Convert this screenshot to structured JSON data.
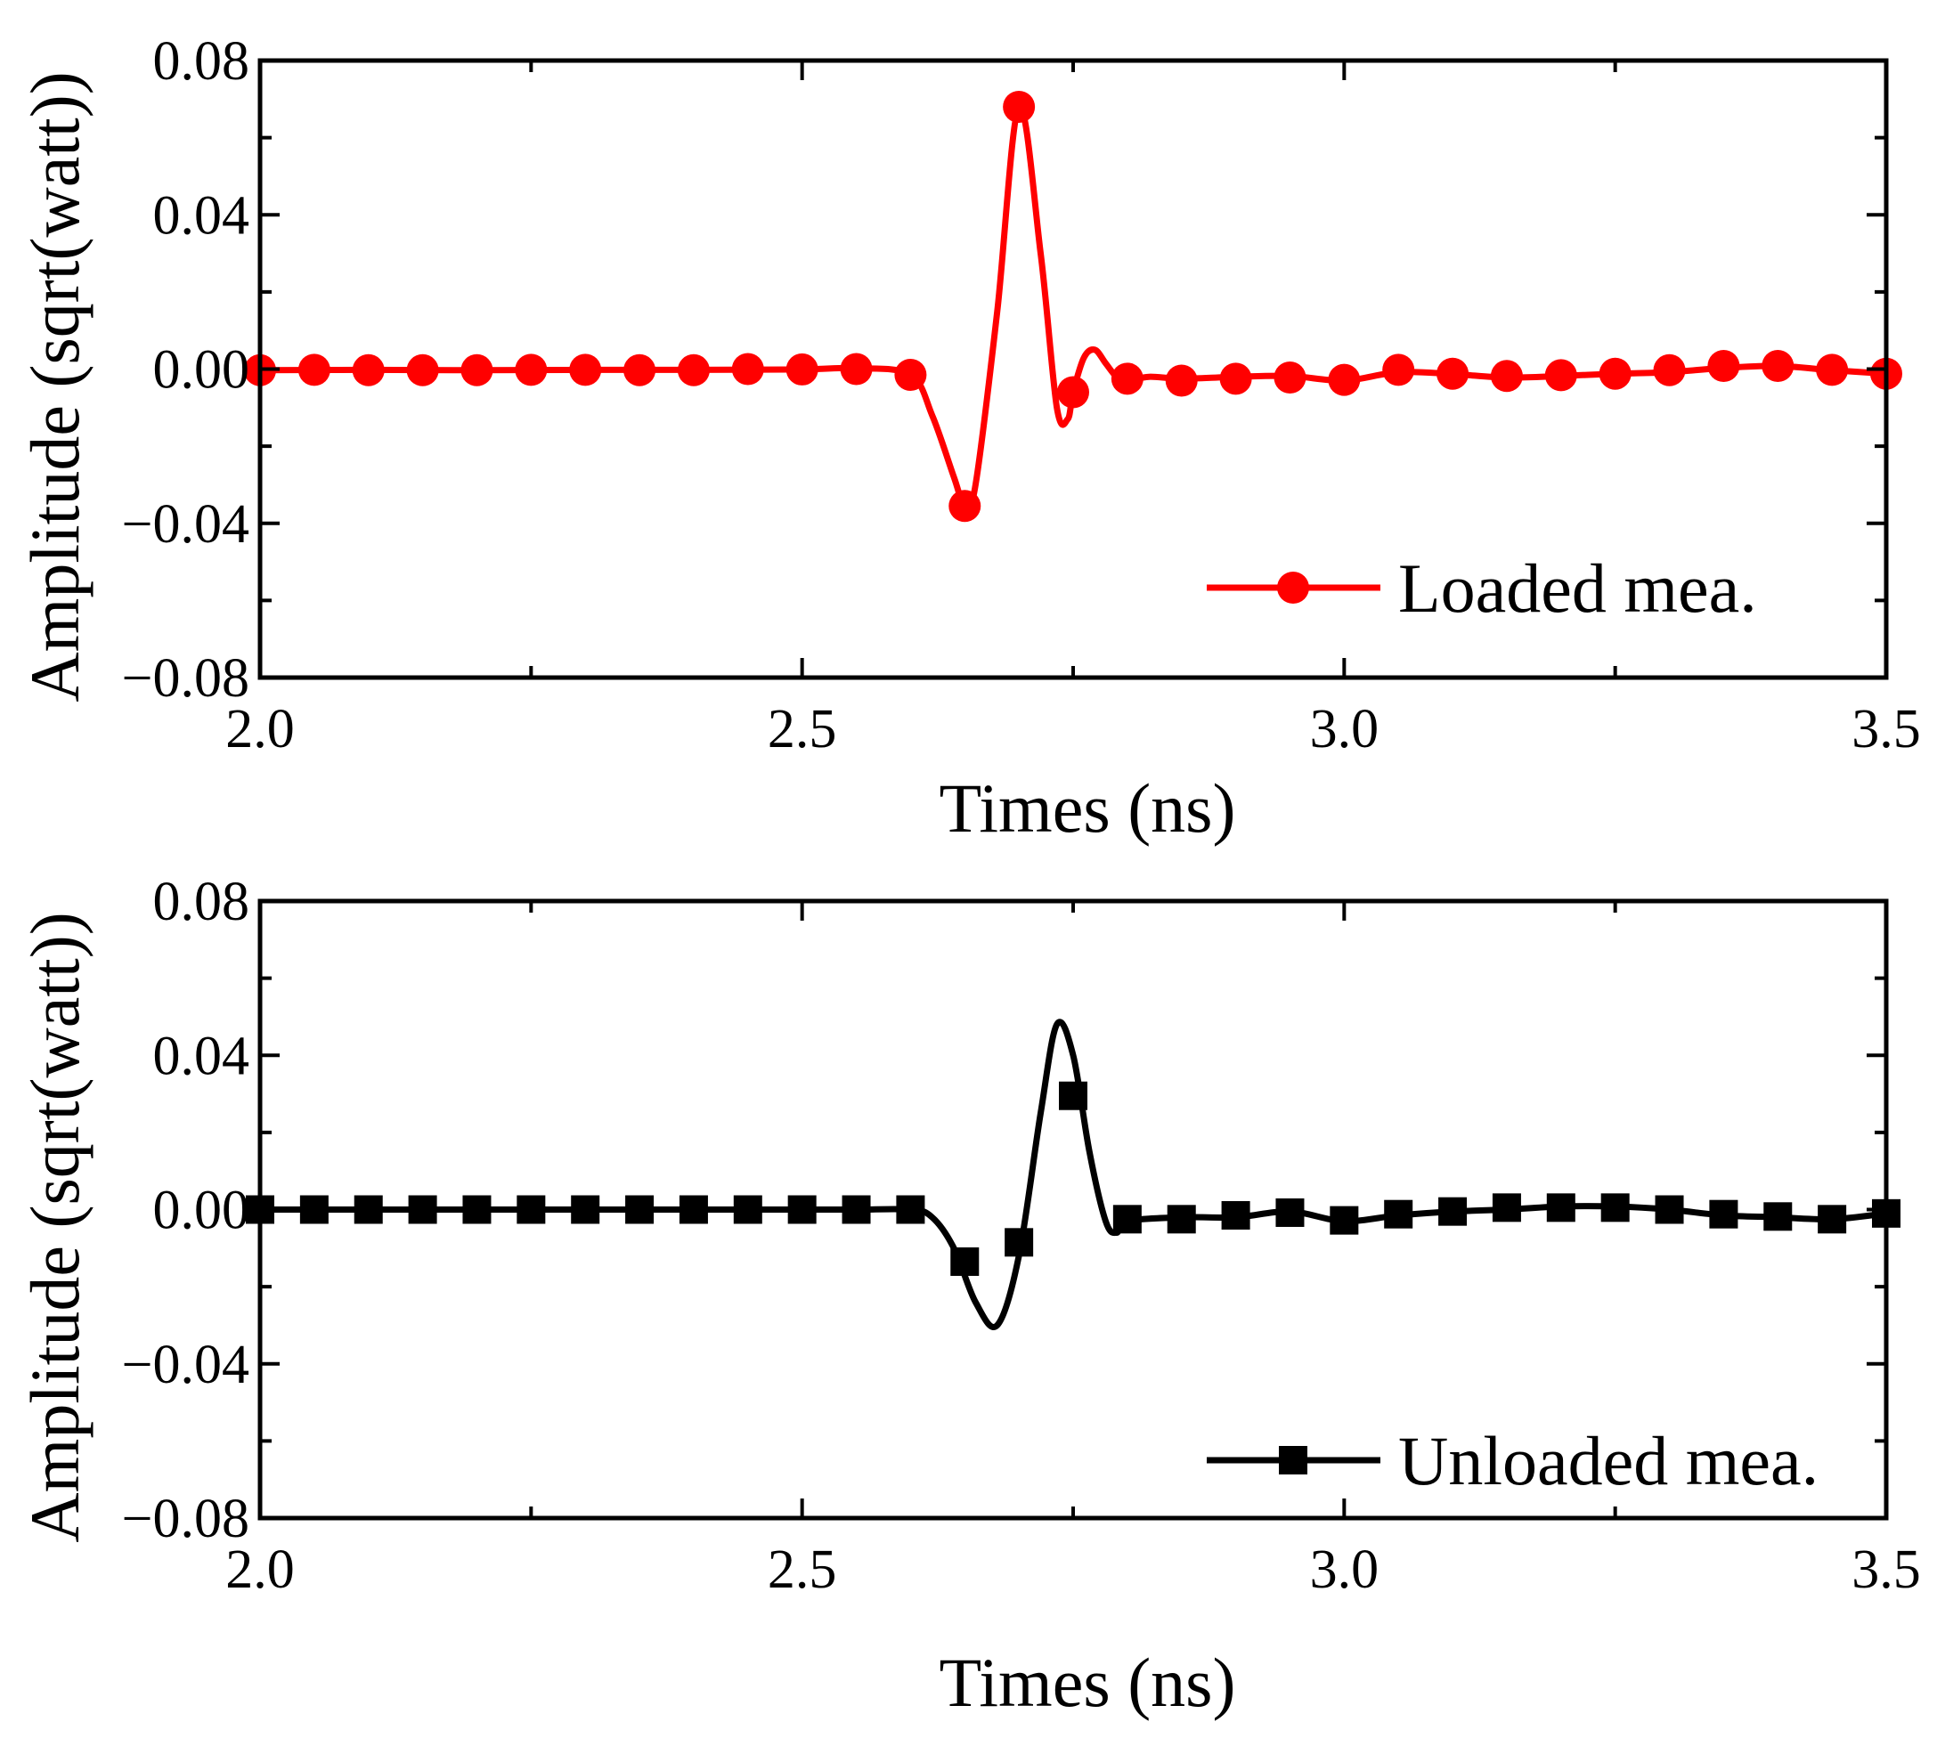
{
  "chart_data": [
    {
      "type": "line",
      "xlabel": "Times (ns)",
      "ylabel": "Amplitude (sqrt(watt))",
      "xlim": [
        2.0,
        3.5
      ],
      "ylim": [
        -0.08,
        0.08
      ],
      "xticks": [
        2.0,
        2.5,
        3.0,
        3.5
      ],
      "xtick_labels": [
        "2.0",
        "2.5",
        "3.0",
        "3.5"
      ],
      "yticks": [
        -0.08,
        -0.04,
        0.0,
        0.04,
        0.08
      ],
      "ytick_labels": [
        "−0.08",
        "−0.04",
        "0.00",
        "0.04",
        "0.08"
      ],
      "grid": false,
      "legend_position": "bottom-right",
      "series": [
        {
          "name": "Loaded mea.",
          "color": "#ff0000",
          "marker": "circle",
          "curve": {
            "x": [
              2.0,
              2.1,
              2.2,
              2.3,
              2.4,
              2.5,
              2.55,
              2.6,
              2.62,
              2.64,
              2.65,
              2.66,
              2.68,
              2.7,
              2.72,
              2.735,
              2.745,
              2.75,
              2.76,
              2.77,
              2.78,
              2.79,
              2.8,
              2.82,
              2.85,
              2.9,
              2.95,
              3.0,
              3.05,
              3.1,
              3.15,
              3.2,
              3.25,
              3.3,
              3.35,
              3.4,
              3.45,
              3.5
            ],
            "y": [
              -0.0003,
              -0.0002,
              -0.0003,
              -0.0002,
              -0.0002,
              -0.0001,
              0.0002,
              -0.0015,
              -0.012,
              -0.028,
              -0.0355,
              -0.03,
              0.015,
              0.068,
              0.03,
              -0.01,
              -0.013,
              -0.006,
              0.003,
              0.005,
              0.0015,
              -0.002,
              -0.003,
              -0.002,
              -0.0025,
              -0.002,
              -0.0018,
              -0.003,
              -0.0008,
              -0.0013,
              -0.0022,
              -0.0018,
              -0.0012,
              -0.0008,
              0.0003,
              0.0008,
              -0.0003,
              -0.0012
            ]
          },
          "markers": {
            "x": [
              2.0,
              2.05,
              2.1,
              2.15,
              2.2,
              2.25,
              2.3,
              2.35,
              2.4,
              2.45,
              2.5,
              2.55,
              2.6,
              2.65,
              2.7,
              2.75,
              2.8,
              2.85,
              2.9,
              2.95,
              3.0,
              3.05,
              3.1,
              3.15,
              3.2,
              3.25,
              3.3,
              3.35,
              3.4,
              3.45,
              3.5
            ],
            "y": [
              -0.0003,
              -0.0002,
              -0.0003,
              -0.0003,
              -0.0003,
              -0.0002,
              -0.0002,
              -0.0003,
              -0.0003,
              0.0,
              -0.0001,
              0.0,
              -0.0015,
              -0.0355,
              0.068,
              -0.006,
              -0.0025,
              -0.003,
              -0.0025,
              -0.0022,
              -0.0028,
              -0.0002,
              -0.0012,
              -0.0018,
              -0.0016,
              -0.0012,
              -0.0003,
              0.0008,
              0.0008,
              -0.0002,
              -0.0012
            ]
          }
        }
      ]
    },
    {
      "type": "line",
      "xlabel": "Times (ns)",
      "ylabel": "Amplitude (sqrt(watt))",
      "xlim": [
        2.0,
        3.5
      ],
      "ylim": [
        -0.08,
        0.08
      ],
      "xticks": [
        2.0,
        2.5,
        3.0,
        3.5
      ],
      "xtick_labels": [
        "2.0",
        "2.5",
        "3.0",
        "3.5"
      ],
      "yticks": [
        -0.08,
        -0.04,
        0.0,
        0.04,
        0.08
      ],
      "ytick_labels": [
        "−0.08",
        "−0.04",
        "0.00",
        "0.04",
        "0.08"
      ],
      "grid": false,
      "legend_position": "bottom-right",
      "series": [
        {
          "name": "Unloaded mea.",
          "color": "#000000",
          "marker": "square",
          "curve": {
            "x": [
              2.0,
              2.1,
              2.2,
              2.3,
              2.4,
              2.5,
              2.55,
              2.6,
              2.62,
              2.64,
              2.66,
              2.68,
              2.7,
              2.72,
              2.735,
              2.75,
              2.765,
              2.78,
              2.79,
              2.8,
              2.85,
              2.9,
              2.95,
              3.0,
              3.05,
              3.1,
              3.15,
              3.2,
              3.25,
              3.3,
              3.35,
              3.4,
              3.45,
              3.5
            ],
            "y": [
              0.0,
              0.0,
              0.0,
              0.0,
              0.0,
              0.0,
              0.0,
              0.0,
              -0.002,
              -0.01,
              -0.024,
              -0.03,
              -0.012,
              0.025,
              0.048,
              0.04,
              0.015,
              -0.003,
              -0.006,
              -0.003,
              -0.002,
              -0.002,
              -0.0005,
              -0.003,
              -0.0015,
              -0.0005,
              0.0,
              0.0008,
              0.0008,
              0.0,
              -0.0015,
              -0.002,
              -0.0025,
              -0.001
            ]
          },
          "markers": {
            "x": [
              2.0,
              2.05,
              2.1,
              2.15,
              2.2,
              2.25,
              2.3,
              2.35,
              2.4,
              2.45,
              2.5,
              2.55,
              2.6,
              2.65,
              2.7,
              2.75,
              2.8,
              2.85,
              2.9,
              2.95,
              3.0,
              3.05,
              3.1,
              3.15,
              3.2,
              3.25,
              3.3,
              3.35,
              3.4,
              3.45,
              3.5
            ],
            "y": [
              0.0,
              0.0,
              0.0,
              0.0,
              0.0,
              0.0,
              0.0,
              0.0,
              0.0,
              0.0,
              0.0,
              0.0,
              0.0,
              -0.0135,
              -0.0085,
              0.0295,
              -0.0025,
              -0.0025,
              -0.0015,
              -0.0008,
              -0.0028,
              -0.0012,
              -0.0005,
              0.0005,
              0.0005,
              0.0005,
              0.0,
              -0.0012,
              -0.0018,
              -0.0025,
              -0.001
            ]
          }
        }
      ]
    }
  ]
}
